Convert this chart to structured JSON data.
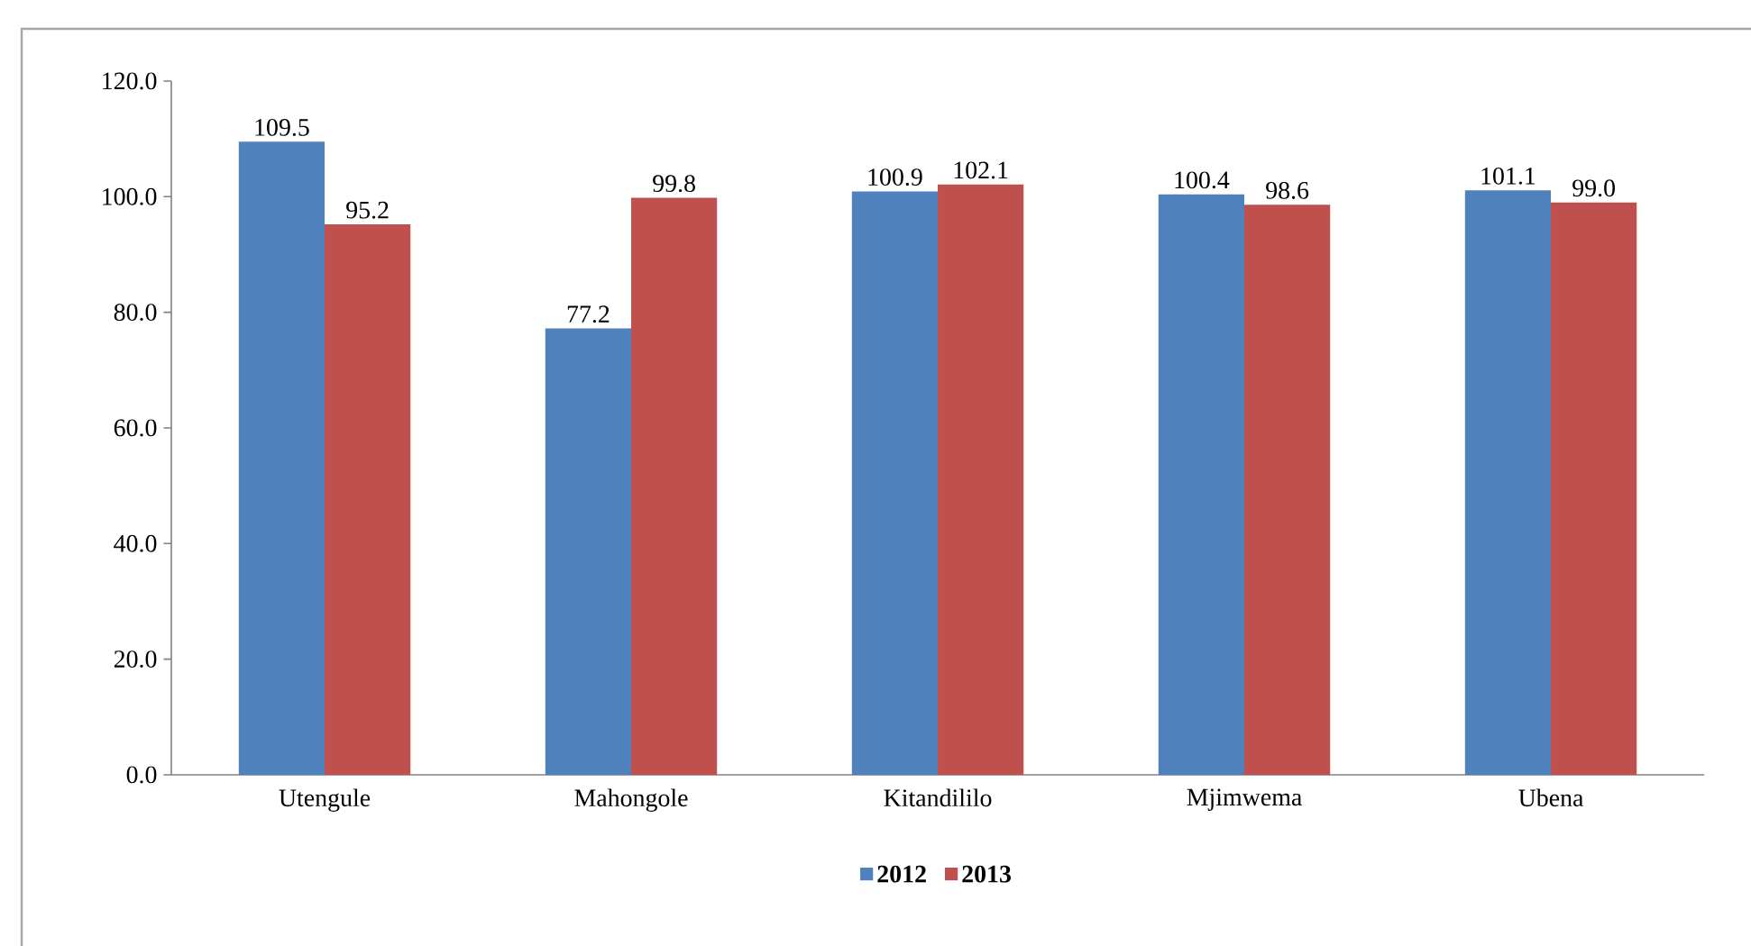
{
  "chart_data": {
    "type": "bar",
    "categories": [
      "Utengule",
      "Mahongole",
      "Kitandililo",
      "Mjimwema",
      "Ubena"
    ],
    "series": [
      {
        "name": "2012",
        "color": "#4f81bd",
        "values": [
          109.5,
          77.2,
          100.9,
          100.4,
          101.1
        ],
        "value_labels": [
          "109.5",
          "77.2",
          "100.9",
          "100.4",
          "101.1"
        ]
      },
      {
        "name": "2013",
        "color": "#c0504d",
        "values": [
          95.2,
          99.8,
          102.1,
          98.6,
          99.0
        ],
        "value_labels": [
          "95.2",
          "99.8",
          "102.1",
          "98.6",
          "99.0"
        ]
      }
    ],
    "ylim": [
      0,
      120
    ],
    "yticks": [
      {
        "value": 0,
        "label": "0.0"
      },
      {
        "value": 20,
        "label": "20.0"
      },
      {
        "value": 40,
        "label": "40.0"
      },
      {
        "value": 60,
        "label": "60.0"
      },
      {
        "value": 80,
        "label": "80.0"
      },
      {
        "value": 100,
        "label": "100.0"
      },
      {
        "value": 120,
        "label": "120.0"
      }
    ],
    "grid": false,
    "legend": "bottom"
  }
}
